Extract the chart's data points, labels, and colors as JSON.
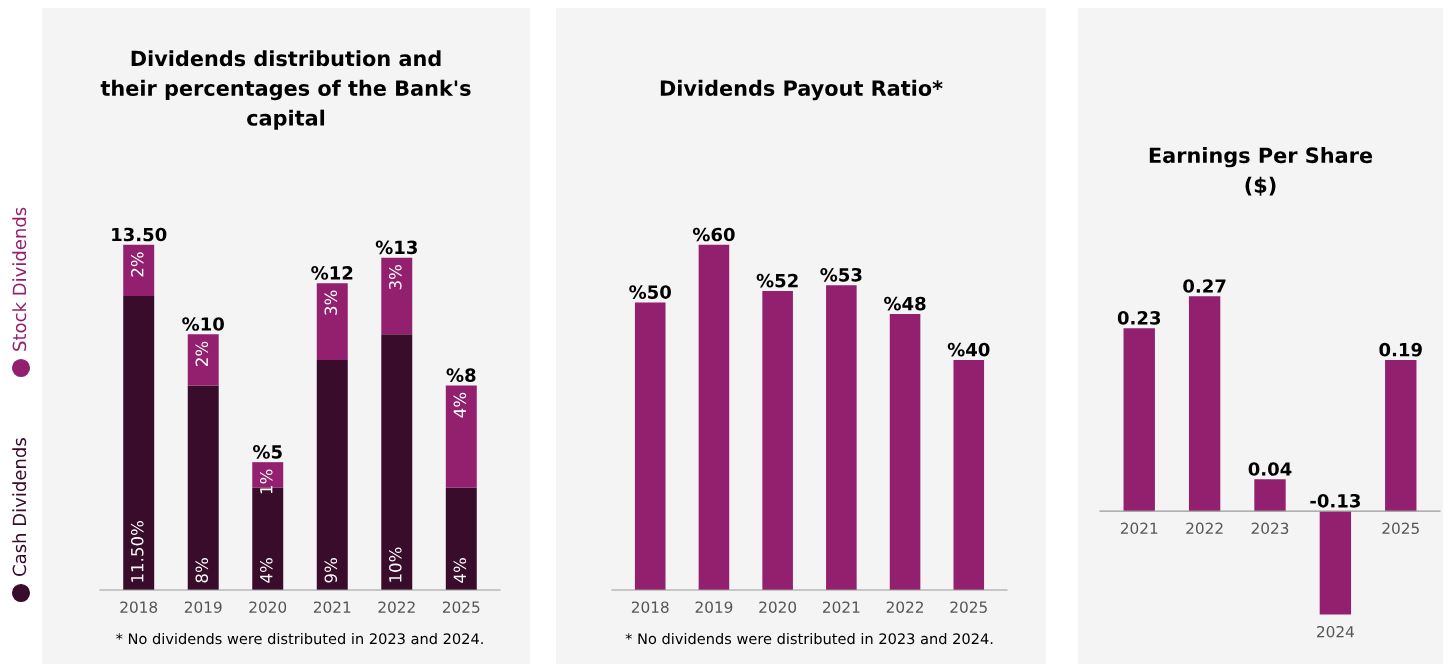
{
  "chart_data": [
    {
      "type": "bar",
      "title": "Dividends distribution and\ntheir percentages of the Bank's\ncapital",
      "categories": [
        "2018",
        "2019",
        "2020",
        "2021",
        "2022",
        "2025"
      ],
      "stacked": true,
      "legend": "left",
      "series": [
        {
          "name": "Cash Dividends",
          "color": "#3a0c2b",
          "values": [
            11.5,
            8,
            4,
            9,
            10,
            4
          ],
          "value_labels": [
            "11.50%",
            "8%",
            "4%",
            "9%",
            "10%",
            "4%"
          ]
        },
        {
          "name": "Stock Dividends",
          "color": "#93206f",
          "values": [
            2,
            2,
            1,
            3,
            3,
            4
          ],
          "value_labels": [
            "2%",
            "2%",
            "1%",
            "3%",
            "3%",
            "4%"
          ]
        }
      ],
      "totals": [
        "13.50",
        "%10",
        "%5",
        "%12",
        "%13",
        "%8"
      ],
      "annotations": [
        "* No dividends were distributed in 2023 and 2024."
      ]
    },
    {
      "type": "bar",
      "title": "Dividends Payout Ratio*",
      "categories": [
        "2018",
        "2019",
        "2020",
        "2021",
        "2022",
        "2025"
      ],
      "color": "#93206f",
      "values": [
        50,
        60,
        52,
        53,
        48,
        40
      ],
      "value_labels": [
        "%50",
        "%60",
        "%52",
        "%53",
        "%48",
        "%40"
      ],
      "annotations": [
        "* No dividends were distributed in 2023 and 2024."
      ]
    },
    {
      "type": "bar",
      "title": "Earnings Per Share\n($)",
      "categories": [
        "2021",
        "2022",
        "2023",
        "2024",
        "2025"
      ],
      "color": "#93206f",
      "values": [
        0.23,
        0.27,
        0.04,
        -0.13,
        0.19
      ],
      "data_labels": true
    }
  ]
}
